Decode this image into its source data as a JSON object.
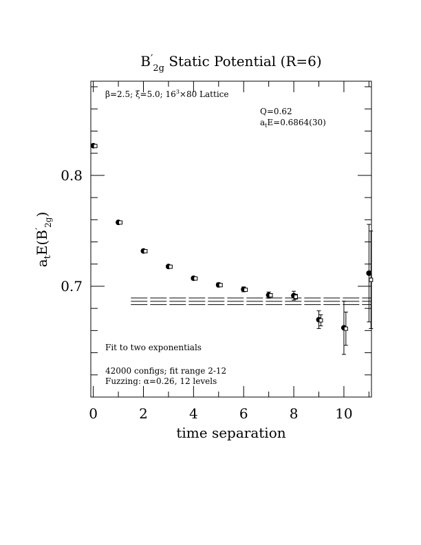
{
  "chart_data": {
    "type": "scatter",
    "title": {
      "main": "B",
      "prime": "′",
      "sub": "2g",
      "rest": " Static Potential (R=6)"
    },
    "xlabel": "time separation",
    "ylabel": {
      "main": "a",
      "sub_t": "t",
      "mid": "E(B",
      "prime": "′",
      "sub": "2g",
      "close": ")"
    },
    "xlim": [
      -0.1,
      11.1
    ],
    "ylim": [
      0.6,
      0.885
    ],
    "x_ticks_major": [
      0,
      2,
      4,
      6,
      8,
      10
    ],
    "x_ticks_minor": [
      1,
      3,
      5,
      7,
      9,
      11
    ],
    "y_ticks_major": [
      0.7,
      0.8
    ],
    "y_ticks_minor": [
      0.62,
      0.64,
      0.66,
      0.68,
      0.72,
      0.74,
      0.76,
      0.78,
      0.82,
      0.84,
      0.86,
      0.88
    ],
    "x_tick_labels": [
      "0",
      "2",
      "4",
      "6",
      "8",
      "10"
    ],
    "y_tick_labels": [
      "0.7",
      "0.8"
    ],
    "annotations": {
      "lattice": {
        "beta": "β",
        "a": "=2.5; ",
        "xi": "ξ",
        "b": "=5.0; 16",
        "sup": "3",
        "c": "×80 Lattice"
      },
      "q": "Q=0.62",
      "ate": {
        "a": "a",
        "t": "t",
        "rest": "E=0.6864(30)"
      },
      "fit": "Fit to two exponentials",
      "configs": "42000 configs; fit range 2-12",
      "fuzzing": {
        "a": "Fuzzing: ",
        "alpha": "α",
        "b": "=0.26, 12 levels"
      }
    },
    "series": [
      {
        "marker": "filled-circle",
        "x": [
          0,
          1,
          2,
          3,
          4,
          5,
          6,
          7,
          8,
          9,
          10,
          11
        ],
        "y": [
          0.8268,
          0.7576,
          0.7318,
          0.7178,
          0.7072,
          0.7012,
          0.6972,
          0.692,
          0.6915,
          0.6698,
          0.6625,
          0.7118
        ],
        "err": [
          0.0006,
          0.0008,
          0.001,
          0.0012,
          0.0015,
          0.0018,
          0.0022,
          0.0028,
          0.004,
          0.008,
          0.024,
          0.044
        ]
      },
      {
        "marker": "open-square",
        "x": [
          0.08,
          1.08,
          2.08,
          3.08,
          4.08,
          5.08,
          6.08,
          7.08,
          8.08,
          9.08,
          10.08,
          11.08
        ],
        "y": [
          0.8265,
          0.7575,
          0.7316,
          0.7176,
          0.707,
          0.701,
          0.6968,
          0.6918,
          0.6905,
          0.6692,
          0.6617,
          0.7058
        ],
        "err": [
          0.0004,
          0.0005,
          0.0006,
          0.0007,
          0.0008,
          0.001,
          0.0012,
          0.0015,
          0.0022,
          0.005,
          0.015,
          0.044
        ]
      }
    ],
    "fit": {
      "center": 0.6864,
      "error": 0.003,
      "x_range": [
        1.5,
        11.1
      ]
    }
  }
}
